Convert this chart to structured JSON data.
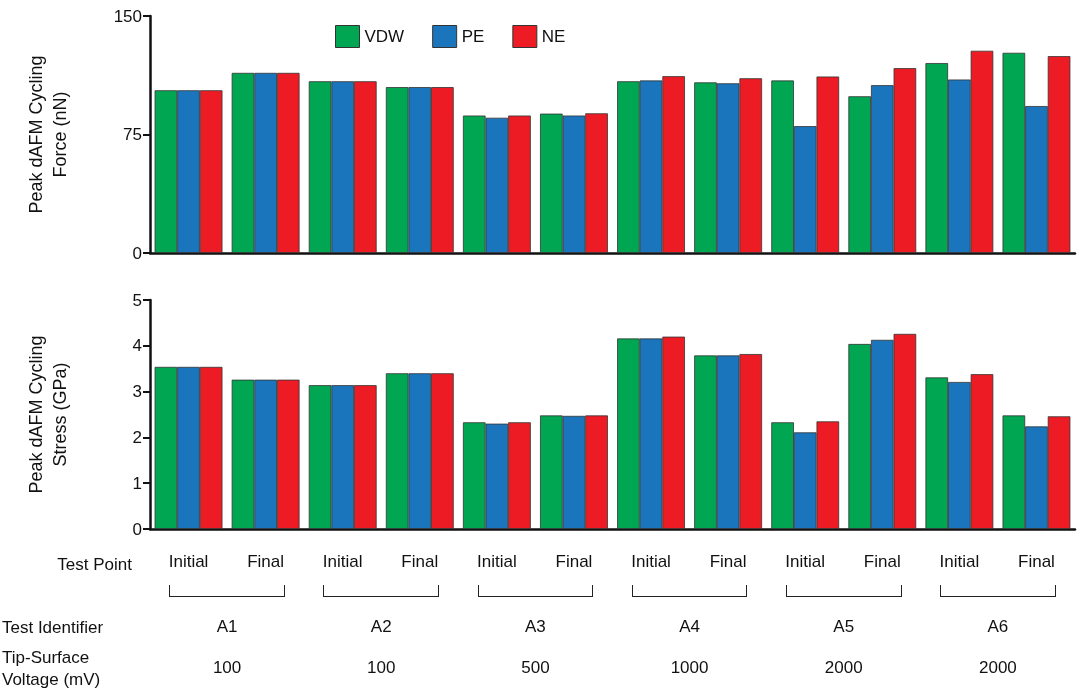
{
  "chart_data": [
    {
      "type": "bar",
      "ylabel": "Peak dAFM Cycling Force (nN)",
      "categories": [
        null,
        null,
        null,
        null,
        null,
        null,
        null,
        null,
        null,
        null,
        null,
        null
      ],
      "ylim": [
        0,
        150
      ],
      "yticks": [
        0,
        75,
        150
      ],
      "grid": false,
      "legend": "top",
      "tick_labels": "y",
      "series": [
        {
          "name": "VDW",
          "color": "#00a651",
          "values": [
            103,
            114,
            108.7,
            105,
            87,
            88.2,
            108.7,
            108,
            109.2,
            99.2,
            120.2,
            126.7
          ]
        },
        {
          "name": "PE",
          "color": "#1a75bc",
          "values": [
            103,
            114,
            108.7,
            105,
            85.6,
            87,
            109.2,
            107.4,
            80.3,
            106.2,
            109.8,
            93
          ]
        },
        {
          "name": "NE",
          "color": "#ed1c24",
          "values": [
            103,
            114,
            108.7,
            105,
            87,
            88.4,
            111.9,
            110.6,
            111.7,
            117,
            128,
            124.6
          ]
        }
      ]
    },
    {
      "type": "bar",
      "ylabel": "Peak dAFM Cycling Stress (GPa)",
      "xlabel": "Test Point",
      "categories": [
        "Initial",
        "Final",
        "Initial",
        "Final",
        "Initial",
        "Final",
        "Initial",
        "Final",
        "Initial",
        "Final",
        "Initial",
        "Final"
      ],
      "ylim": [
        0,
        5
      ],
      "yticks": [
        0,
        1,
        2,
        3,
        4,
        5
      ],
      "grid": false,
      "series": [
        {
          "color": "#00a651",
          "values": [
            3.54,
            3.26,
            3.14,
            3.4,
            2.33,
            2.48,
            4.16,
            3.79,
            2.33,
            4.04,
            3.31,
            2.48
          ]
        },
        {
          "color": "#1a75bc",
          "values": [
            3.54,
            3.26,
            3.14,
            3.4,
            2.3,
            2.47,
            4.16,
            3.79,
            2.11,
            4.13,
            3.21,
            2.24
          ]
        },
        {
          "color": "#ed1c24",
          "values": [
            3.54,
            3.26,
            3.14,
            3.4,
            2.33,
            2.48,
            4.2,
            3.82,
            2.35,
            4.26,
            3.38,
            2.46
          ]
        }
      ],
      "annotations": [
        "Test Identifier",
        "A1",
        "A2",
        "A3",
        "A4",
        "A5",
        "A6",
        "Tip-Surface Voltage (mV)",
        "100",
        "100",
        "500",
        "1000",
        "2000",
        "2000"
      ]
    }
  ]
}
